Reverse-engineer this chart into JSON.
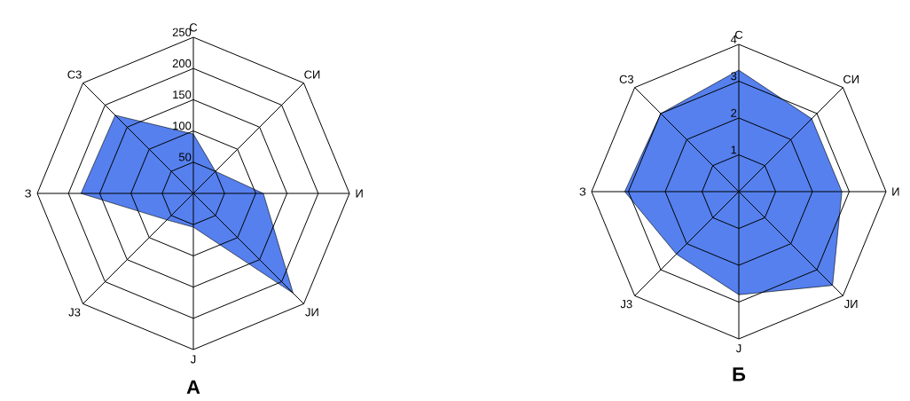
{
  "chart_data": [
    {
      "type": "radar",
      "title": "А",
      "categories": [
        "С",
        "СИ",
        "И",
        "JИ",
        "J",
        "J3",
        "З",
        "С3"
      ],
      "series": [
        {
          "color": "#5580ee",
          "values": [
            95,
            50,
            112,
            226,
            54,
            60,
            180,
            177
          ]
        }
      ],
      "ylim": [
        0,
        250
      ],
      "yticks": [
        50,
        100,
        150,
        200,
        250
      ],
      "grid": true
    },
    {
      "type": "radar",
      "title": "Б",
      "categories": [
        "С",
        "СИ",
        "И",
        "JИ",
        "J",
        "J3",
        "З",
        "С3"
      ],
      "series": [
        {
          "color": "#5580ee",
          "values": [
            3.3,
            2.8,
            2.8,
            3.6,
            2.8,
            2.4,
            3.1,
            3.0
          ]
        }
      ],
      "ylim": [
        0,
        4
      ],
      "yticks": [
        1,
        2,
        3,
        4
      ],
      "grid": true
    }
  ]
}
